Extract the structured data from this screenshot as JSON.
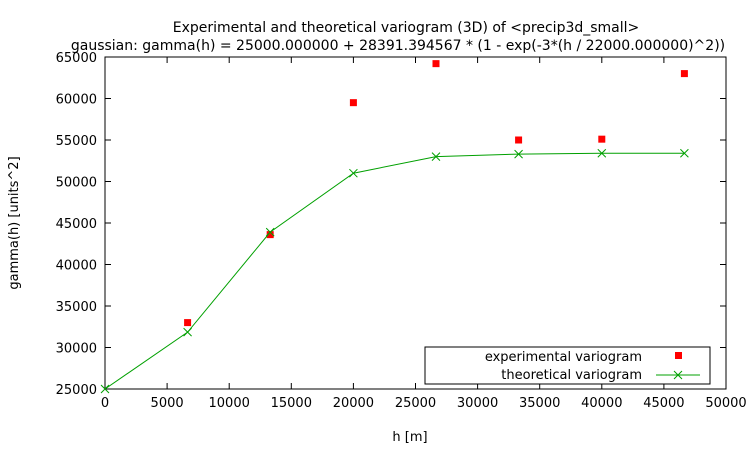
{
  "chart_data": {
    "type": "scatter",
    "title": "Experimental and theoretical variogram (3D) of <precip3d_small>",
    "subtitle": "gaussian: gamma(h) = 25000.000000 + 28391.394567 * (1 - exp(-3*(h / 22000.000000)^2))",
    "xlabel": "h [m]",
    "ylabel": "gamma(h) [units^2]",
    "xlim": [
      0,
      50000
    ],
    "ylim": [
      25000,
      65000
    ],
    "xticks": [
      "0",
      "5000",
      "10000",
      "15000",
      "20000",
      "25000",
      "30000",
      "35000",
      "40000",
      "45000",
      "50000"
    ],
    "yticks": [
      "25000",
      "30000",
      "35000",
      "40000",
      "45000",
      "50000",
      "55000",
      "60000",
      "65000"
    ],
    "grid": false,
    "legend_position": "bottom-right",
    "series": [
      {
        "name": "experimental variogram",
        "style": "points",
        "marker": "square",
        "color": "#ff0000",
        "x": [
          6650,
          13300,
          20000,
          26650,
          33300,
          40000,
          46650
        ],
        "y": [
          33000,
          43600,
          59500,
          64200,
          55000,
          55100,
          63000
        ]
      },
      {
        "name": "theoretical variogram",
        "style": "linespoints",
        "marker": "x",
        "color": "#00a000",
        "x": [
          0,
          6650,
          13300,
          20000,
          26650,
          33300,
          40000,
          46650
        ],
        "y": [
          25000,
          31850,
          43900,
          51000,
          53000,
          53300,
          53400,
          53400
        ]
      }
    ]
  }
}
